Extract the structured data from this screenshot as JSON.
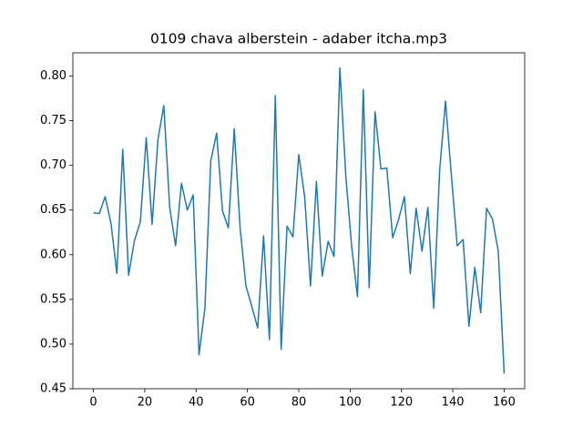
{
  "chart_data": {
    "type": "line",
    "title": "0109 chava alberstein - adaber itcha.mp3",
    "x": [
      0,
      2.29,
      4.57,
      6.86,
      9.14,
      11.43,
      13.71,
      16,
      18.29,
      20.57,
      22.86,
      25.14,
      27.43,
      29.71,
      32,
      34.29,
      36.57,
      38.86,
      41.14,
      43.43,
      45.71,
      48,
      50.29,
      52.57,
      54.86,
      57.14,
      59.43,
      61.71,
      64,
      66.29,
      68.57,
      70.86,
      73.14,
      75.43,
      77.71,
      80,
      82.29,
      84.57,
      86.86,
      89.14,
      91.43,
      93.71,
      96,
      98.29,
      100.57,
      102.86,
      105.14,
      107.43,
      109.71,
      112,
      114.29,
      116.57,
      118.86,
      121.14,
      123.43,
      125.71,
      128,
      130.29,
      132.57,
      134.86,
      137.14,
      139.43,
      141.71,
      144,
      146.29,
      148.57,
      150.86,
      153.14,
      155.43,
      157.71,
      160
    ],
    "series": [
      {
        "color": "#1f77b4",
        "values": [
          0.647,
          0.646,
          0.665,
          0.635,
          0.579,
          0.718,
          0.577,
          0.616,
          0.637,
          0.731,
          0.634,
          0.729,
          0.767,
          0.653,
          0.61,
          0.68,
          0.65,
          0.667,
          0.488,
          0.54,
          0.705,
          0.736,
          0.649,
          0.63,
          0.741,
          0.63,
          0.565,
          0.542,
          0.518,
          0.621,
          0.505,
          0.778,
          0.494,
          0.632,
          0.62,
          0.712,
          0.665,
          0.565,
          0.682,
          0.576,
          0.615,
          0.598,
          0.809,
          0.689,
          0.61,
          0.553,
          0.785,
          0.563,
          0.76,
          0.696,
          0.697,
          0.619,
          0.639,
          0.665,
          0.579,
          0.652,
          0.604,
          0.653,
          0.54,
          0.694,
          0.772,
          0.689,
          0.61,
          0.617,
          0.52,
          0.586,
          0.535,
          0.652,
          0.64,
          0.604,
          0.467
        ]
      }
    ],
    "xlim": [
      -8,
      168
    ],
    "xticks": [
      0,
      20,
      40,
      60,
      80,
      100,
      120,
      140,
      160
    ],
    "ylim": [
      0.45,
      0.826
    ],
    "yticks": [
      0.45,
      {
        "value": 0.5,
        "label": "0.50"
      },
      0.55,
      {
        "value": 0.6,
        "label": "0.60"
      },
      0.65,
      {
        "value": 0.7,
        "label": "0.70"
      },
      0.75,
      {
        "value": 0.8,
        "label": "0.80"
      }
    ],
    "grid": false
  }
}
